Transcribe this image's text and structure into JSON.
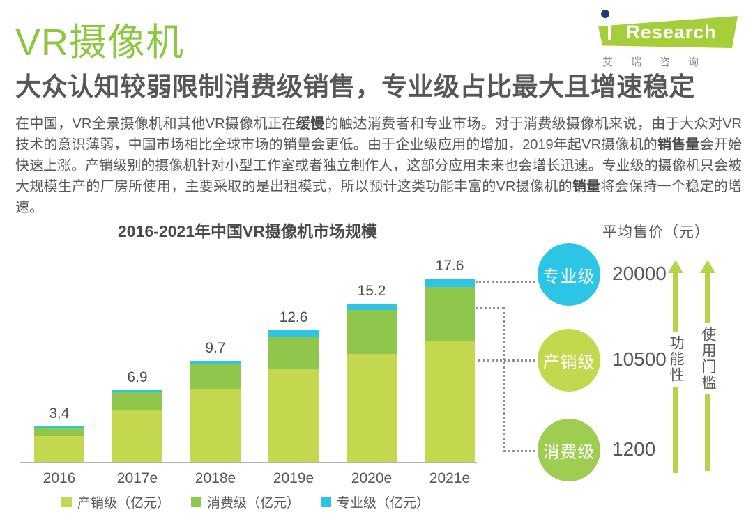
{
  "header": {
    "title": "VR摄像机",
    "subtitle": "大众认知较弱限制消费级销售，专业级占比最大且增速稳定",
    "logo": {
      "brand": "iResearch",
      "brand_word": "Research",
      "subtext": "艾瑞咨询"
    }
  },
  "paragraph_segments": [
    {
      "text": "在中国，VR全景摄像机和其他VR摄像机正在",
      "bold": false
    },
    {
      "text": "缓慢",
      "bold": true
    },
    {
      "text": "的触达消费者和专业市场。对于消费级摄像机来说，由于大众对VR技术的意识薄弱，中国市场相比全球市场的销量会更低。由于企业级应用的增加，2019年起VR摄像机的",
      "bold": false
    },
    {
      "text": "销售量",
      "bold": true
    },
    {
      "text": "会开始快速上涨。产销级别的摄像机针对小型工作室或者独立制作人，这部分应用未来也会增长迅速。专业级的摄像机只会被大规模生产的厂房所使用，主要采取的是出租模式，所以预计这类功能丰富的VR摄像机的",
      "bold": false
    },
    {
      "text": "销量",
      "bold": true
    },
    {
      "text": "将会保持一个稳定的增速。",
      "bold": false
    }
  ],
  "chart_data": {
    "type": "bar",
    "stacked": true,
    "title": "2016-2021年中国VR摄像机市场规模",
    "categories": [
      "2016",
      "2017e",
      "2018e",
      "2019e",
      "2020e",
      "2021e"
    ],
    "series": [
      {
        "name": "产销级（亿元）",
        "color": "#c3d84f",
        "values": [
          2.5,
          5.0,
          7.0,
          8.9,
          10.4,
          11.6
        ]
      },
      {
        "name": "消费级（亿元）",
        "color": "#8ec74b",
        "values": [
          0.8,
          1.7,
          2.4,
          3.1,
          4.2,
          5.2
        ]
      },
      {
        "name": "专业级（亿元）",
        "color": "#2cc5e6",
        "values": [
          0.1,
          0.2,
          0.3,
          0.6,
          0.6,
          0.8
        ]
      }
    ],
    "totals": [
      3.4,
      6.9,
      9.7,
      12.6,
      15.2,
      17.6
    ],
    "total_labels": [
      "3.4",
      "6.9",
      "9.7",
      "12.6",
      "15.2",
      "17.6"
    ],
    "ylabel": "亿元",
    "ylim": [
      0,
      18.9
    ],
    "grid": false,
    "legend_position": "bottom"
  },
  "price_panel": {
    "header": "平均售价（元）",
    "items": [
      {
        "label": "专业级",
        "value": "20000",
        "color": "#2cc5e6"
      },
      {
        "label": "产销级",
        "value": "10500",
        "color": "#c3d84f"
      },
      {
        "label": "消费级",
        "value": "1200",
        "color": "#9ecd52"
      }
    ],
    "axes": [
      {
        "label": "功能性"
      },
      {
        "label": "使用门槛"
      }
    ]
  },
  "colors": {
    "title_green": "#8dc63f",
    "text_gray": "#595757",
    "bar_production": "#c3d84f",
    "bar_consumer": "#8ec74b",
    "bar_professional": "#2cc5e6",
    "arrow_green": "#b5d44b",
    "logo_green": "#a6ce39",
    "logo_dot_navy": "#223a70"
  }
}
